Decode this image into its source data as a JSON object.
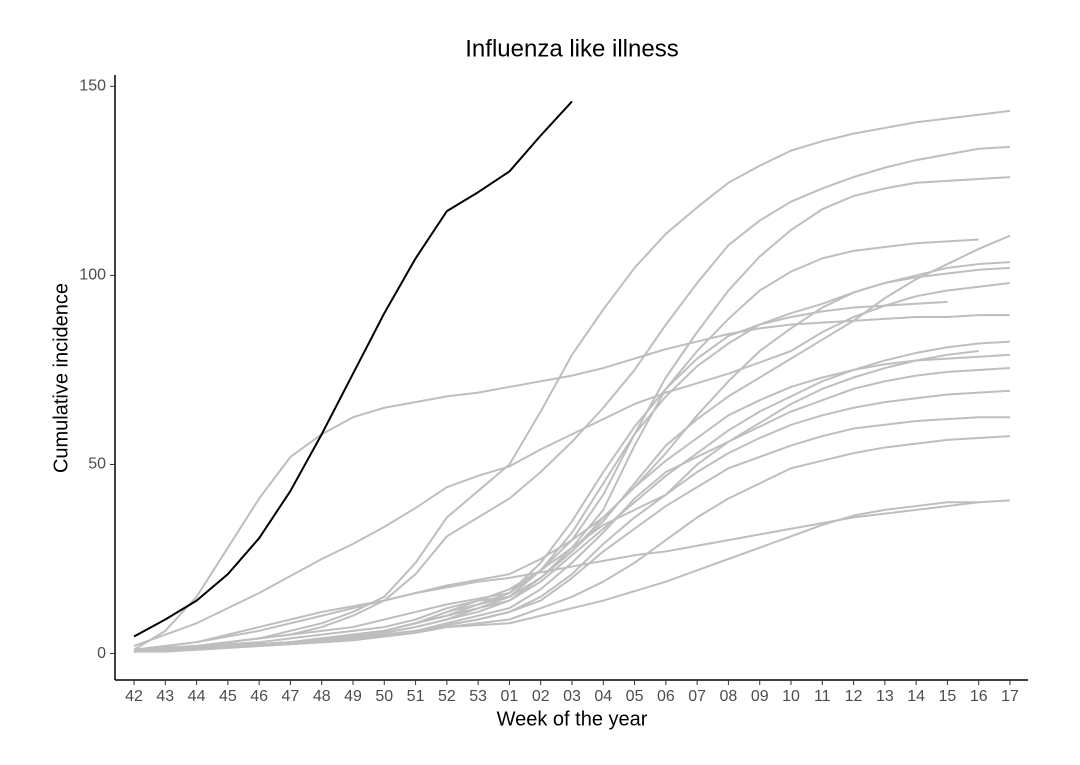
{
  "chart_data": {
    "type": "line",
    "title": "Influenza like illness",
    "x_label": "Week of the year",
    "y_label": "Cumulative incidence",
    "categories": [
      "42",
      "43",
      "44",
      "45",
      "46",
      "47",
      "48",
      "49",
      "50",
      "51",
      "52",
      "53",
      "01",
      "02",
      "03",
      "04",
      "05",
      "06",
      "07",
      "08",
      "09",
      "10",
      "11",
      "12",
      "13",
      "14",
      "15",
      "16",
      "17"
    ],
    "ylim": [
      -7,
      153
    ],
    "yticks": [
      0,
      50,
      100,
      150
    ],
    "grid": false,
    "series": [
      {
        "color": "#bebebe",
        "values": [
          1,
          1.5,
          2,
          3,
          4,
          6,
          8,
          11,
          15,
          24,
          36,
          43,
          50,
          64,
          79,
          91,
          102,
          111,
          118,
          124.5,
          129,
          133,
          135.5,
          137.5,
          139,
          140.5,
          141.5,
          142.5,
          143.5
        ]
      },
      {
        "color": "#bebebe",
        "values": [
          1,
          1.5,
          2,
          3,
          4,
          5,
          7,
          10,
          14,
          21,
          31,
          36,
          41,
          48,
          56,
          65,
          75,
          87,
          98,
          108,
          114.5,
          119.5,
          123,
          126,
          128.5,
          130.5,
          132,
          133.5,
          134
        ]
      },
      {
        "color": "#bebebe",
        "values": [
          0.5,
          1,
          1.5,
          2,
          2.5,
          3,
          4,
          5,
          6,
          8,
          11,
          13,
          16,
          22,
          30,
          42,
          58,
          73,
          85,
          96,
          105,
          112,
          117.5,
          121,
          123,
          124.5,
          125,
          125.5,
          126
        ]
      },
      {
        "color": "#bebebe",
        "values": [
          0.5,
          1,
          1.5,
          2,
          2.5,
          3,
          4,
          5,
          6,
          8,
          10,
          12,
          14,
          20,
          28,
          38,
          55,
          70,
          80,
          88.5,
          96,
          101,
          104.5,
          106.5,
          107.5,
          108.5,
          109,
          109.5,
          null
        ]
      },
      {
        "color": "#bebebe",
        "values": [
          0.5,
          1,
          1.5,
          2,
          2.5,
          3,
          3.5,
          4.5,
          5.5,
          7,
          9,
          12,
          15,
          20,
          27,
          35,
          45,
          55,
          62,
          68,
          73,
          78,
          83,
          88,
          94,
          99,
          103,
          107,
          110.5
        ]
      },
      {
        "color": "#bebebe",
        "values": [
          1,
          1.5,
          2,
          2.5,
          3,
          4,
          5,
          6,
          7,
          9,
          12,
          14,
          15,
          22,
          32,
          45,
          58,
          68,
          76,
          82,
          87,
          90,
          92.5,
          95.5,
          98,
          100,
          102,
          103,
          103.5
        ]
      },
      {
        "color": "#bebebe",
        "values": [
          0.5,
          1,
          1.5,
          2,
          2.5,
          3,
          4,
          5,
          6,
          8,
          10,
          13,
          15,
          20,
          27,
          36,
          44,
          53,
          63,
          72,
          80,
          86,
          91.5,
          95.5,
          98,
          99.5,
          100.5,
          101.5,
          102
        ]
      },
      {
        "color": "#bebebe",
        "values": [
          2,
          5,
          8,
          12,
          16,
          20.5,
          25,
          29,
          33.5,
          38.5,
          44,
          47,
          49.5,
          54,
          58,
          62,
          66,
          69,
          71.5,
          74,
          77,
          80,
          85,
          89,
          92,
          94.5,
          96,
          97,
          98
        ]
      },
      {
        "color": "#bebebe",
        "values": [
          1,
          6,
          15,
          28,
          41,
          52,
          58,
          62.5,
          65,
          66.5,
          68,
          69,
          70.5,
          72,
          73.5,
          75.5,
          78,
          80.5,
          82.5,
          84.5,
          86,
          87,
          87.5,
          88,
          88.5,
          89,
          89,
          89.5,
          89.5
        ]
      },
      {
        "color": "#bebebe",
        "values": [
          1,
          1.5,
          2,
          3,
          4,
          5,
          6,
          7,
          9,
          11,
          13,
          14.5,
          16,
          24,
          35,
          48,
          60,
          70,
          78,
          84,
          87,
          89,
          90.5,
          91.5,
          92,
          92.5,
          93,
          null,
          null
        ]
      },
      {
        "color": "#bebebe",
        "values": [
          0.5,
          1,
          1.5,
          2,
          2.5,
          3,
          3.5,
          4.5,
          5.5,
          7,
          9,
          11,
          14,
          19,
          26,
          33,
          40,
          47,
          53,
          59,
          64,
          68,
          72,
          75,
          77.5,
          79.5,
          81,
          82,
          82.5
        ]
      },
      {
        "color": "#bebebe",
        "values": [
          0.5,
          1,
          1.5,
          2,
          2.5,
          3,
          4,
          5,
          6,
          8,
          11,
          14,
          17,
          22,
          28,
          34,
          38,
          42,
          50,
          56,
          61,
          66,
          70,
          73,
          75.5,
          77.5,
          79,
          80,
          null
        ]
      },
      {
        "color": "#bebebe",
        "values": [
          1,
          2,
          3,
          4.5,
          6,
          8,
          10,
          12,
          14,
          16,
          18,
          19.5,
          21,
          25,
          30,
          36,
          44,
          51,
          57,
          63,
          67,
          70.5,
          73,
          75,
          76.5,
          77.5,
          78,
          78.5,
          79
        ]
      },
      {
        "color": "#bebebe",
        "values": [
          0.5,
          1,
          1.5,
          2,
          2.5,
          3,
          3.5,
          4,
          5,
          6,
          8,
          10,
          12,
          17,
          24,
          32,
          41,
          48,
          52,
          56,
          60,
          64,
          67,
          70,
          72,
          73.5,
          74.5,
          75,
          75.5
        ]
      },
      {
        "color": "#bebebe",
        "values": [
          0.5,
          1,
          1.5,
          2,
          2.5,
          3,
          3.5,
          4,
          5,
          6,
          7.5,
          9,
          11,
          15,
          21,
          29,
          36,
          42,
          48,
          53,
          57,
          60.5,
          63,
          65,
          66.5,
          67.5,
          68.5,
          69,
          69.5
        ]
      },
      {
        "color": "#bebebe",
        "values": [
          0.5,
          1,
          1.5,
          2,
          2.5,
          3,
          3.5,
          4,
          5,
          6,
          7.5,
          9,
          11,
          14,
          20,
          27,
          33,
          39,
          44,
          49,
          52,
          55,
          57.5,
          59.5,
          60.5,
          61.5,
          62,
          62.5,
          62.5
        ]
      },
      {
        "color": "#bebebe",
        "values": [
          0.5,
          1,
          1,
          1.5,
          2,
          2.5,
          3,
          3.5,
          4.5,
          5.5,
          7,
          8,
          9,
          12,
          15,
          19,
          24,
          30,
          36,
          41,
          45,
          49,
          51,
          53,
          54.5,
          55.5,
          56.5,
          57,
          57.5
        ]
      },
      {
        "color": "#bebebe",
        "values": [
          0.5,
          0.5,
          1,
          1.5,
          2,
          2.5,
          3,
          3.5,
          4.5,
          5.5,
          7,
          7.5,
          8,
          10,
          12,
          14,
          16.5,
          19,
          22,
          25,
          28,
          31,
          34,
          36.5,
          38,
          39,
          40,
          40,
          40.5
        ]
      },
      {
        "color": "#bebebe",
        "values": [
          1,
          2,
          3,
          5,
          7,
          9,
          11,
          12.5,
          14,
          16,
          17.5,
          19,
          20,
          21.5,
          23,
          24.5,
          26,
          27,
          28.5,
          30,
          31.5,
          33,
          34.5,
          36,
          37,
          38,
          39,
          40,
          null
        ]
      },
      {
        "color": "#000000",
        "values": [
          4.5,
          9,
          14,
          21,
          30.5,
          43,
          58,
          74,
          90,
          104.5,
          117,
          122,
          127.5,
          137,
          146,
          null,
          null,
          null,
          null,
          null,
          null,
          null,
          null,
          null,
          null,
          null,
          null,
          null,
          null
        ]
      }
    ]
  }
}
